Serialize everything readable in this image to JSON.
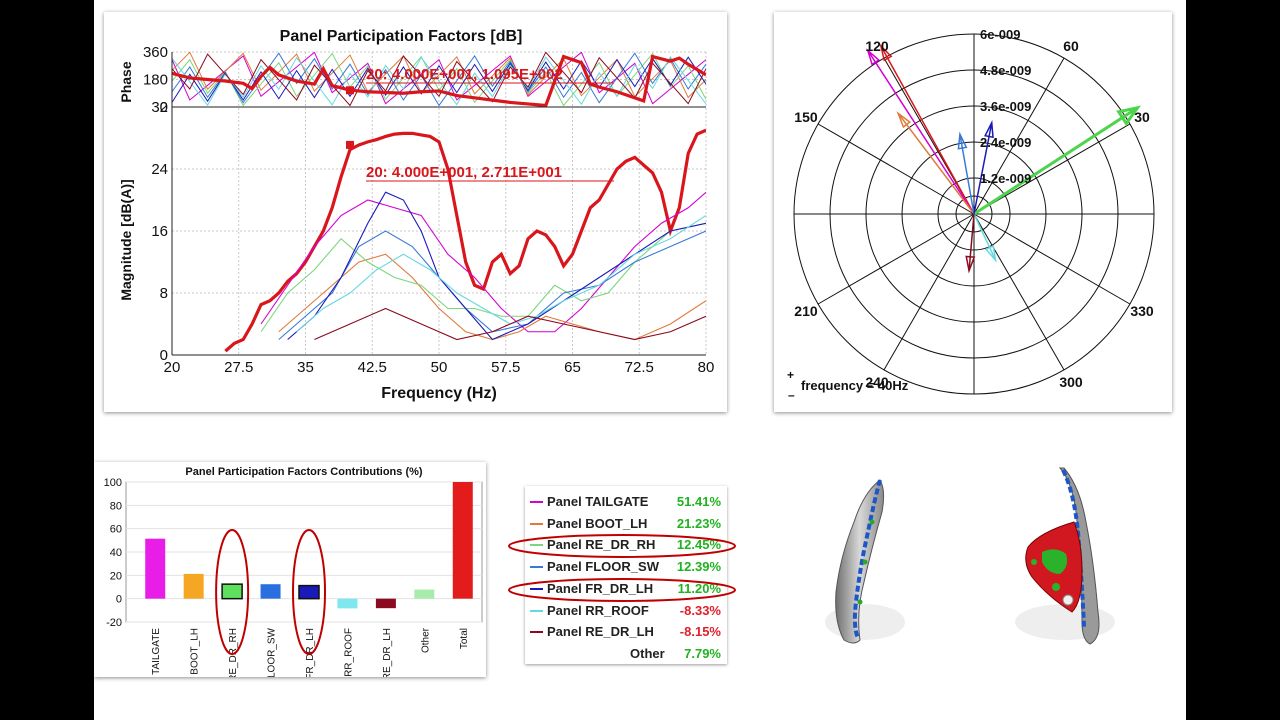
{
  "colors": {
    "total": "#d9161c",
    "positive": "#1fb31f",
    "negative": "#e0202a",
    "marker_ellipse": "#c00000"
  },
  "ppf_chart": {
    "title": "Panel Participation Factors [dB]",
    "phase_ylabel": "Phase",
    "mag_ylabel": "Magnitude [dB(A)]",
    "xlabel": "Frequency (Hz)",
    "phase_annotation": "20: 4.000E+001, 1.095E+002",
    "mag_annotation": "20: 4.000E+001, 2.711E+001"
  },
  "polar_chart": {
    "radial_labels": [
      "1.2e-009",
      "2.4e-009",
      "3.6e-009",
      "4.8e-009",
      "6e-009"
    ],
    "angle_labels": [
      "30",
      "60",
      "120",
      "150",
      "210",
      "240",
      "300",
      "330"
    ],
    "plus_label": "+",
    "minus_label": "–",
    "frequency_text": "frequency = 40Hz"
  },
  "legend": {
    "items": [
      {
        "name": "Panel TAILGATE",
        "value": "51.41%",
        "color": "#d400d4",
        "sign": "pos"
      },
      {
        "name": "Panel BOOT_LH",
        "value": "21.23%",
        "color": "#e07a3c",
        "sign": "pos"
      },
      {
        "name": "Panel RE_DR_RH",
        "value": "12.45%",
        "color": "#7cd67c",
        "sign": "pos"
      },
      {
        "name": "Panel FLOOR_SW",
        "value": "12.39%",
        "color": "#3a7ad6",
        "sign": "pos"
      },
      {
        "name": "Panel FR_DR_LH",
        "value": "11.20%",
        "color": "#1a1ab8",
        "sign": "pos"
      },
      {
        "name": "Panel RR_ROOF",
        "value": "-8.33%",
        "color": "#66d9e0",
        "sign": "neg"
      },
      {
        "name": "Panel RE_DR_LH",
        "value": "-8.15%",
        "color": "#8b0a1f",
        "sign": "neg"
      },
      {
        "name": "Other",
        "value": "7.79%",
        "color": "",
        "sign": "pos"
      }
    ]
  },
  "chart_data": [
    {
      "type": "line",
      "title": "Panel Participation Factors [dB]",
      "subplot": "phase",
      "ylabel": "Phase",
      "xlim": [
        20,
        80
      ],
      "ylim": [
        0,
        360
      ],
      "yticks": [
        0,
        180,
        360
      ],
      "series": [
        {
          "name": "Total",
          "x": [
            20,
            22,
            24,
            26,
            28,
            29,
            30,
            31,
            32,
            34,
            36,
            37,
            38,
            40,
            42,
            44,
            46,
            48,
            50,
            52,
            54,
            56,
            58,
            60,
            62,
            64,
            66,
            67,
            68,
            70,
            72,
            73,
            74,
            76,
            77,
            78,
            80
          ],
          "y": [
            220,
            190,
            180,
            170,
            155,
            120,
            200,
            260,
            210,
            170,
            150,
            250,
            140,
            110,
            100,
            95,
            90,
            100,
            105,
            75,
            60,
            45,
            30,
            20,
            10,
            330,
            290,
            150,
            130,
            100,
            60,
            40,
            330,
            300,
            320,
            280,
            210
          ]
        }
      ],
      "annotation": {
        "x": 40,
        "y": 109.5,
        "text": "20: 4.000E+001, 1.095E+002"
      }
    },
    {
      "type": "line",
      "subplot": "magnitude",
      "xlabel": "Frequency (Hz)",
      "ylabel": "Magnitude [dB(A)]",
      "xlim": [
        20,
        80
      ],
      "ylim": [
        0,
        32
      ],
      "xticks": [
        20,
        27.5,
        35,
        42.5,
        50,
        57.5,
        65,
        72.5,
        80
      ],
      "yticks": [
        0,
        8,
        16,
        24,
        32
      ],
      "series": [
        {
          "name": "Total",
          "x": [
            26,
            27,
            28,
            29,
            30,
            31,
            32,
            33,
            34,
            35,
            36,
            37,
            38,
            39,
            40,
            41,
            42,
            43,
            44,
            45,
            46,
            47,
            48,
            49,
            50,
            51,
            52,
            53,
            54,
            55,
            56,
            57,
            58,
            59,
            60,
            61,
            62,
            63,
            64,
            65,
            66,
            67,
            68,
            69,
            70,
            71,
            72,
            73,
            74,
            75,
            76,
            77,
            78,
            79,
            80
          ],
          "y": [
            0.5,
            1.5,
            2,
            4,
            6.5,
            7,
            8,
            9.5,
            10.5,
            12,
            14,
            16,
            19,
            23,
            26.5,
            27.1,
            27.5,
            27.8,
            28.2,
            28.5,
            28.6,
            28.6,
            28.4,
            28.2,
            27.5,
            24,
            18,
            12,
            9,
            8.5,
            12,
            13,
            10.5,
            11.5,
            15,
            16,
            15.5,
            14,
            11.5,
            13,
            16,
            19,
            20,
            22,
            24,
            25,
            25.5,
            24.5,
            23.5,
            21,
            16,
            19,
            26,
            28.5,
            29
          ]
        },
        {
          "name": "Panel TAILGATE",
          "x": [
            30,
            33,
            36,
            39,
            42,
            45,
            48,
            51,
            54,
            57,
            60,
            63,
            66,
            69,
            72,
            75,
            78,
            80
          ],
          "y": [
            4,
            9,
            14,
            18,
            20,
            19,
            18,
            13,
            10,
            6,
            3,
            3,
            6,
            10,
            14,
            17,
            19,
            21
          ]
        },
        {
          "name": "Panel BOOT_LH",
          "x": [
            32,
            35,
            38,
            41,
            44,
            47,
            50,
            53,
            56,
            59,
            62,
            65,
            68,
            72,
            76,
            80
          ],
          "y": [
            3,
            6,
            9,
            12,
            13,
            10,
            6,
            3,
            2,
            3,
            5,
            4,
            3,
            2,
            4,
            7
          ]
        },
        {
          "name": "Panel RE_DR_RH",
          "x": [
            30,
            33,
            36,
            39,
            42,
            45,
            48,
            51,
            54,
            57,
            60,
            63,
            66,
            69,
            72,
            76,
            80
          ],
          "y": [
            3,
            8,
            11,
            15,
            12,
            10,
            9,
            6,
            6,
            5,
            5,
            9,
            7,
            8,
            12,
            16,
            17
          ]
        },
        {
          "name": "Panel FLOOR_SW",
          "x": [
            32,
            35,
            38,
            41,
            44,
            47,
            50,
            53,
            56,
            60,
            64,
            68,
            72,
            76,
            80
          ],
          "y": [
            2,
            5,
            8,
            14,
            16,
            14,
            10,
            6,
            3,
            4,
            8,
            9,
            12,
            14,
            16
          ]
        },
        {
          "name": "Panel FR_DR_LH",
          "x": [
            33,
            36,
            39,
            42,
            44,
            46,
            48,
            50,
            53,
            56,
            60,
            64,
            68,
            72,
            76,
            80
          ],
          "y": [
            2,
            5,
            10,
            17,
            21,
            20,
            16,
            10,
            6,
            2,
            4,
            7,
            10,
            13,
            16,
            17
          ]
        },
        {
          "name": "Panel RR_ROOF",
          "x": [
            34,
            37,
            40,
            43,
            46,
            49,
            52,
            55,
            58,
            61,
            64,
            68,
            72,
            76,
            80
          ],
          "y": [
            3,
            6,
            8,
            11,
            13,
            11,
            8,
            6,
            4,
            5,
            7,
            9,
            13,
            15,
            18
          ]
        },
        {
          "name": "Panel RE_DR_LH",
          "x": [
            36,
            40,
            44,
            48,
            52,
            56,
            60,
            64,
            68,
            72,
            76,
            80
          ],
          "y": [
            2,
            4,
            6,
            4,
            2,
            3,
            5,
            4,
            3,
            2,
            3,
            5
          ]
        }
      ],
      "annotation": {
        "x": 40,
        "y": 27.11,
        "text": "20: 4.000E+001, 2.711E+001"
      }
    },
    {
      "type": "polar",
      "radial_ticks": [
        1.2e-09,
        2.4e-09,
        3.6e-09,
        4.8e-09,
        6e-09
      ],
      "angle_ticks_deg": [
        0,
        30,
        60,
        90,
        120,
        150,
        180,
        210,
        240,
        270,
        300,
        330
      ],
      "vectors": [
        {
          "name": "Total",
          "angle_deg": 119,
          "magnitude": 6.4e-09,
          "color": "#d9161c"
        },
        {
          "name": "Panel TAILGATE",
          "angle_deg": 123,
          "magnitude": 6.5e-09,
          "color": "#d400d4"
        },
        {
          "name": "Panel BOOT_LH",
          "angle_deg": 127,
          "magnitude": 4.2e-09,
          "color": "#e07a3c"
        },
        {
          "name": "Panel RE_DR_RH",
          "angle_deg": 33,
          "magnitude": 6.5e-09,
          "color": "#4cd44c"
        },
        {
          "name": "Panel FLOOR_SW",
          "angle_deg": 100,
          "magnitude": 2.7e-09,
          "color": "#3a7ad6"
        },
        {
          "name": "Panel FR_DR_LH",
          "angle_deg": 79,
          "magnitude": 3.1e-09,
          "color": "#1a1ab8"
        },
        {
          "name": "Panel RR_ROOF",
          "angle_deg": 295,
          "magnitude": 1.7e-09,
          "color": "#66d9e0"
        },
        {
          "name": "Panel RE_DR_LH",
          "angle_deg": 265,
          "magnitude": 1.9e-09,
          "color": "#8b0a1f"
        }
      ]
    },
    {
      "type": "bar",
      "title": "Panel Participation Factors Contributions (%)",
      "categories": [
        "TAILGATE",
        "BOOT_LH",
        "RE_DR_RH",
        "FLOOR_SW",
        "FR_DR_LH",
        "RR_ROOF",
        "RE_DR_LH",
        "Other",
        "Total"
      ],
      "values": [
        51.41,
        21.23,
        12.45,
        12.39,
        11.2,
        -8.33,
        -8.15,
        7.79,
        100
      ],
      "colors": [
        "#e81ee8",
        "#f5a623",
        "#5ee05e",
        "#2a6fe0",
        "#1a1ab8",
        "#7ee8ee",
        "#8b0a1f",
        "#a8ecac",
        "#e31b1b"
      ],
      "ylim": [
        -20,
        100
      ],
      "yticks": [
        -20,
        0,
        20,
        40,
        60,
        80,
        100
      ],
      "highlighted": [
        "RE_DR_RH",
        "FR_DR_LH"
      ]
    }
  ]
}
